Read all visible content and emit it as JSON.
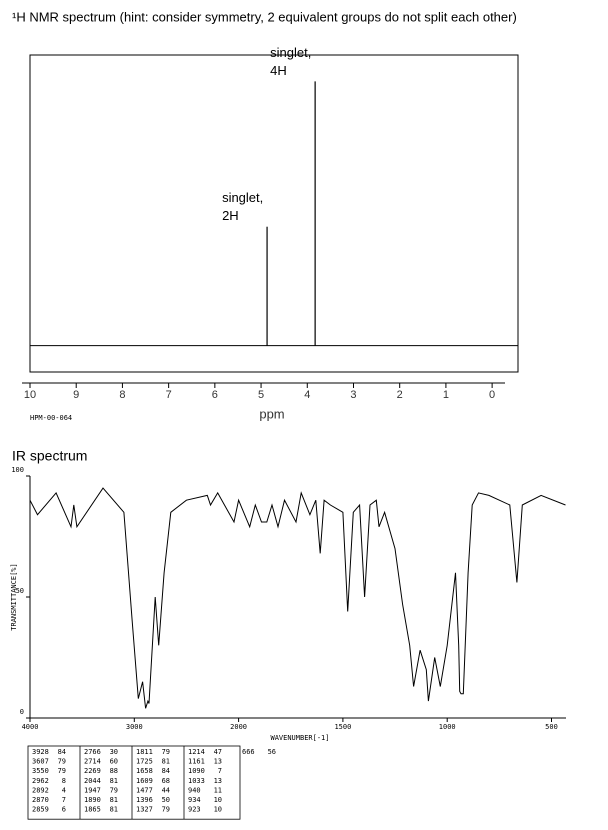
{
  "chart_data": [
    {
      "type": "nmr",
      "title": "¹H NMR spectrum (hint: consider symmetry, 2 equivalent groups do not split each other)",
      "xlabel": "ppm",
      "code": "HPM-00-064",
      "x": [
        4.87,
        3.83
      ],
      "values": [
        45,
        100
      ],
      "annotations": [
        [
          "singlet,",
          "2H"
        ],
        [
          "singlet,",
          "4H"
        ]
      ],
      "xlim": [
        10,
        -0.56
      ],
      "ylim": [
        -10,
        110
      ],
      "xticks": [
        10,
        9,
        8,
        7,
        6,
        5,
        4,
        3,
        2,
        1,
        0
      ],
      "color": "#000000"
    },
    {
      "type": "ir",
      "title": "IR spectrum",
      "xlabel": "WAVENUMBER[-1]",
      "ylabel": "TRANSMITTANCE[%]",
      "x": [
        4000,
        3928,
        3750,
        3607,
        3580,
        3550,
        3300,
        3100,
        3020,
        2962,
        2920,
        2892,
        2870,
        2859,
        2800,
        2766,
        2714,
        2650,
        2500,
        2300,
        2269,
        2200,
        2044,
        2000,
        1947,
        1920,
        1890,
        1865,
        1840,
        1811,
        1780,
        1725,
        1700,
        1658,
        1630,
        1609,
        1590,
        1560,
        1500,
        1477,
        1450,
        1420,
        1396,
        1370,
        1340,
        1327,
        1300,
        1250,
        1214,
        1180,
        1161,
        1130,
        1100,
        1090,
        1060,
        1033,
        1000,
        960,
        945,
        940,
        934,
        923,
        900,
        880,
        850,
        800,
        700,
        666,
        640,
        550,
        433
      ],
      "values": [
        90,
        84,
        93,
        79,
        88,
        79,
        95,
        85,
        40,
        8,
        15,
        4,
        7,
        6,
        50,
        30,
        60,
        85,
        90,
        92,
        88,
        93,
        81,
        90,
        79,
        88,
        81,
        81,
        88,
        79,
        90,
        81,
        93,
        84,
        90,
        68,
        90,
        88,
        85,
        44,
        85,
        88,
        50,
        88,
        90,
        79,
        85,
        70,
        47,
        30,
        13,
        28,
        20,
        7,
        25,
        13,
        30,
        60,
        30,
        11,
        10,
        10,
        60,
        88,
        93,
        92,
        88,
        56,
        88,
        92,
        88
      ],
      "xlim": [
        4000,
        433
      ],
      "xbreak": 2000,
      "ylim": [
        0,
        100
      ],
      "xticks": [
        4000,
        3000,
        2000,
        1500,
        1000,
        500
      ],
      "yticks": [
        0,
        50,
        100
      ],
      "color": "#000000"
    }
  ],
  "peak_table": [
    [
      [
        3928,
        84
      ],
      [
        3607,
        79
      ],
      [
        3550,
        79
      ],
      [
        2962,
        8
      ],
      [
        2892,
        4
      ],
      [
        2870,
        7
      ],
      [
        2859,
        6
      ]
    ],
    [
      [
        2766,
        30
      ],
      [
        2714,
        60
      ],
      [
        2269,
        88
      ],
      [
        2044,
        81
      ],
      [
        1947,
        79
      ],
      [
        1890,
        81
      ],
      [
        1865,
        81
      ]
    ],
    [
      [
        1811,
        79
      ],
      [
        1725,
        81
      ],
      [
        1658,
        84
      ],
      [
        1609,
        68
      ],
      [
        1477,
        44
      ],
      [
        1396,
        50
      ],
      [
        1327,
        79
      ]
    ],
    [
      [
        1214,
        47
      ],
      [
        1161,
        13
      ],
      [
        1090,
        7
      ],
      [
        1033,
        13
      ],
      [
        940,
        11
      ],
      [
        934,
        10
      ],
      [
        923,
        10
      ]
    ],
    [
      [
        666,
        56
      ]
    ]
  ]
}
